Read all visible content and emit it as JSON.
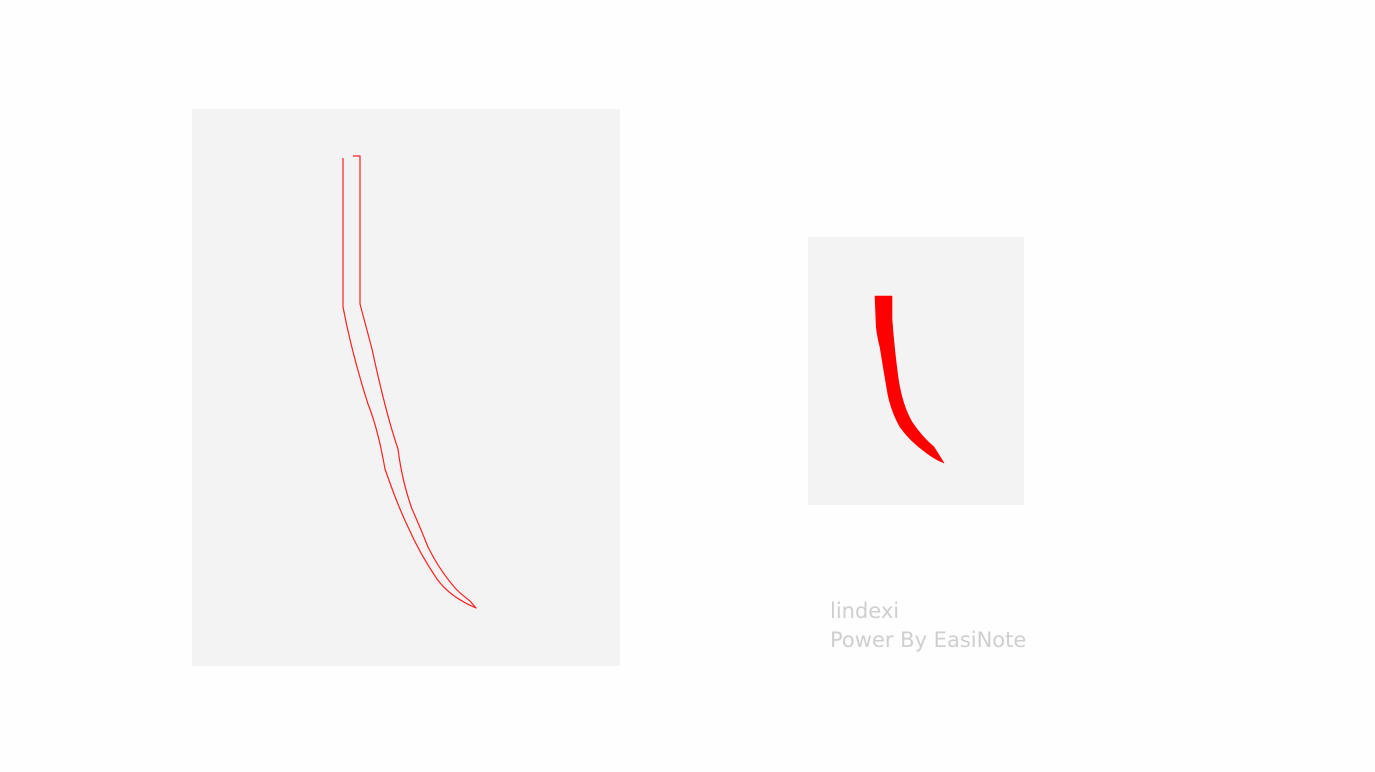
{
  "canvas": {
    "background": "#fefefe",
    "panel_background": "#f3f3f3",
    "stroke_color": "#ff0000"
  },
  "strokes": [
    {
      "name": "outline-stroke",
      "style": "outline"
    },
    {
      "name": "filled-stroke",
      "style": "filled"
    }
  ],
  "watermark": {
    "author": "lindexi",
    "credit": "Power By EasiNote"
  }
}
